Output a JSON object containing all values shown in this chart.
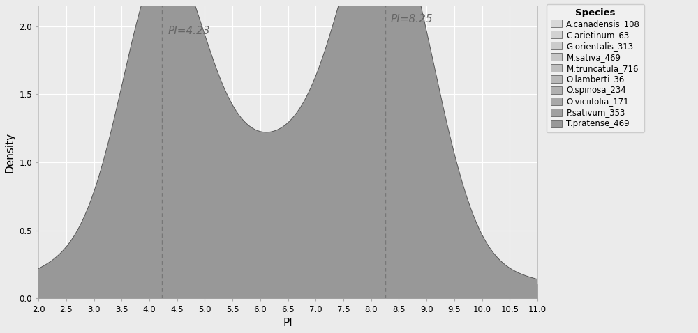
{
  "species": [
    "A.canadensis_108",
    "C.arietinum_63",
    "G.orientalis_313",
    "M.sativa_469",
    "M.truncatula_716",
    "O.lamberti_36",
    "O.spinosa_234",
    "O.viciifolia_171",
    "P.sativum_353",
    "T.pratense_469"
  ],
  "peak1_x": 4.23,
  "peak2_x": 8.25,
  "xmin": 2.0,
  "xmax": 11.0,
  "ymin": 0.0,
  "ymax": 2.15,
  "xlabel": "PI",
  "ylabel": "Density",
  "legend_title": "Species",
  "bg_color": "#EBEBEB",
  "grid_color": "#FFFFFF",
  "dashed_line_color": "#777777",
  "fill_colors": [
    "#D8D8D8",
    "#D2D2D2",
    "#CCCCCC",
    "#C6C6C6",
    "#BEBEBE",
    "#B8B8B8",
    "#B0B0B0",
    "#A8A8A8",
    "#A0A0A0",
    "#989898"
  ],
  "line_color": "#505050",
  "peak1_heights": [
    0.15,
    0.28,
    0.37,
    0.5,
    0.7,
    0.85,
    1.0,
    1.15,
    1.3,
    1.85
  ],
  "peak2_heights": [
    0.28,
    0.55,
    0.72,
    0.9,
    1.0,
    1.22,
    1.35,
    1.5,
    1.72,
    2.22
  ],
  "valley_ratios": [
    0.5,
    0.52,
    0.53,
    0.54,
    0.55,
    0.55,
    0.56,
    0.57,
    0.58,
    0.6
  ],
  "xticks": [
    2.0,
    2.5,
    3.0,
    3.5,
    4.0,
    4.5,
    5.0,
    5.5,
    6.0,
    6.5,
    7.0,
    7.5,
    8.0,
    8.5,
    9.0,
    9.5,
    10.0,
    10.5,
    11.0
  ],
  "annotation_color": "#666666",
  "annotation_fontsize": 11
}
